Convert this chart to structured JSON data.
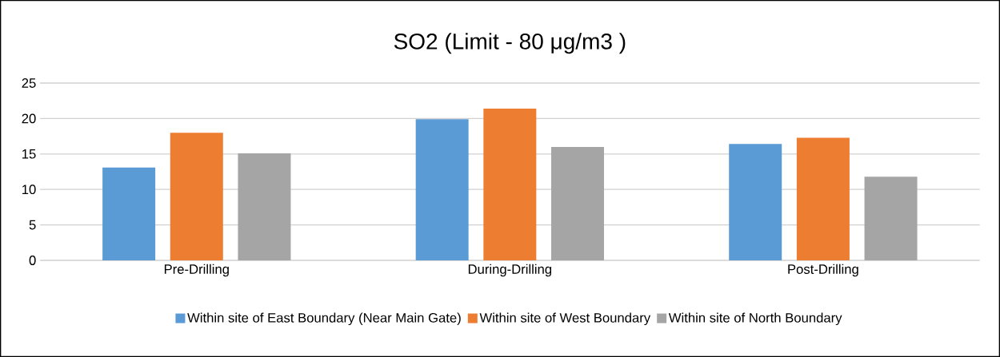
{
  "chart_data": {
    "type": "bar",
    "title": "SO2 (Limit - 80 μg/m3 )",
    "categories": [
      "Pre-Drilling",
      "During-Drilling",
      "Post-Drilling"
    ],
    "series": [
      {
        "name": "Within site of East Boundary (Near Main Gate)",
        "color": "#5b9bd5",
        "values": [
          13.1,
          19.9,
          16.4
        ]
      },
      {
        "name": "Within site of West Boundary",
        "color": "#ed7d31",
        "values": [
          18.0,
          21.4,
          17.3
        ]
      },
      {
        "name": "Within site of  North Boundary",
        "color": "#a5a5a5",
        "values": [
          15.1,
          16.0,
          11.8
        ]
      }
    ],
    "ylim": [
      0,
      25
    ],
    "yticks": [
      0,
      5,
      10,
      15,
      20,
      25
    ],
    "grid": "y",
    "legend": "bottom"
  }
}
